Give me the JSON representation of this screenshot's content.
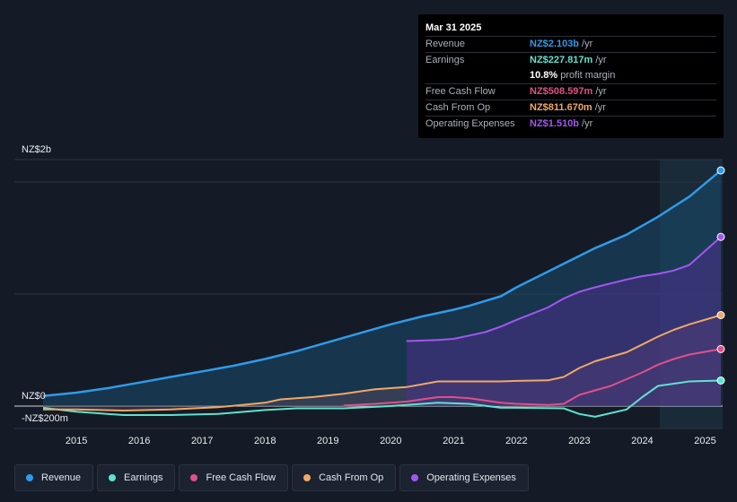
{
  "tooltip": {
    "date": "Mar 31 2025",
    "rows": [
      {
        "label": "Revenue",
        "value": "NZ$2.103b",
        "unit": "/yr",
        "color": "#2f9be8"
      },
      {
        "label": "Earnings",
        "value": "NZ$227.817m",
        "unit": "/yr",
        "color": "#5ee3cf"
      },
      {
        "label": "",
        "value": "10.8%",
        "unit": "profit margin",
        "color": "#ffffff"
      },
      {
        "label": "Free Cash Flow",
        "value": "NZ$508.597m",
        "unit": "/yr",
        "color": "#e0508a"
      },
      {
        "label": "Cash From Op",
        "value": "NZ$811.670m",
        "unit": "/yr",
        "color": "#f0a866"
      },
      {
        "label": "Operating Expenses",
        "value": "NZ$1.510b",
        "unit": "/yr",
        "color": "#a356f0"
      }
    ]
  },
  "legend": [
    {
      "label": "Revenue",
      "color": "#2f9be8"
    },
    {
      "label": "Earnings",
      "color": "#5ee3cf"
    },
    {
      "label": "Free Cash Flow",
      "color": "#e0508a"
    },
    {
      "label": "Cash From Op",
      "color": "#f0a866"
    },
    {
      "label": "Operating Expenses",
      "color": "#a356f0"
    }
  ],
  "chart_data": {
    "type": "line",
    "title": "",
    "ylabel_top": "NZ$2b",
    "ylabel_zero": "NZ$0",
    "ylabel_bottom": "-NZ$200m",
    "x_ticks": [
      "2015",
      "2016",
      "2017",
      "2018",
      "2019",
      "2020",
      "2021",
      "2022",
      "2023",
      "2024",
      "2025"
    ],
    "xlim": [
      2014.47,
      2025.25
    ],
    "ylim": [
      -200,
      2200
    ],
    "units": "NZ$ millions",
    "series": [
      {
        "name": "Revenue",
        "color": "#2f9be8",
        "x": [
          2014.47,
          2015.0,
          2015.5,
          2016.0,
          2016.5,
          2017.0,
          2017.5,
          2018.0,
          2018.5,
          2019.0,
          2019.5,
          2020.0,
          2020.5,
          2021.0,
          2021.25,
          2021.75,
          2022.0,
          2022.5,
          2023.0,
          2023.25,
          2023.75,
          2024.0,
          2024.25,
          2024.5,
          2024.75,
          2025.25
        ],
        "y": [
          90,
          120,
          160,
          210,
          260,
          310,
          360,
          420,
          490,
          570,
          650,
          730,
          800,
          860,
          895,
          980,
          1060,
          1200,
          1340,
          1410,
          1530,
          1610,
          1690,
          1780,
          1870,
          2103
        ]
      },
      {
        "name": "Earnings",
        "color": "#5ee3cf",
        "x": [
          2014.47,
          2015.0,
          2015.75,
          2016.5,
          2017.25,
          2018.0,
          2018.5,
          2019.25,
          2020.0,
          2020.75,
          2021.25,
          2021.75,
          2022.0,
          2022.75,
          2023.0,
          2023.25,
          2023.75,
          2024.0,
          2024.25,
          2024.75,
          2025.25
        ],
        "y": [
          -15,
          -50,
          -80,
          -80,
          -70,
          -35,
          -20,
          -20,
          0,
          30,
          20,
          -15,
          -15,
          -20,
          -70,
          -95,
          -30,
          80,
          180,
          220,
          228
        ]
      },
      {
        "name": "Free Cash Flow",
        "color": "#e0508a",
        "x": [
          2019.25,
          2019.75,
          2020.25,
          2020.75,
          2021.0,
          2021.25,
          2021.75,
          2022.0,
          2022.5,
          2022.75,
          2023.0,
          2023.5,
          2023.75,
          2024.0,
          2024.25,
          2024.5,
          2024.75,
          2025.25
        ],
        "y": [
          5,
          20,
          40,
          80,
          80,
          70,
          30,
          20,
          10,
          20,
          100,
          180,
          240,
          300,
          370,
          420,
          460,
          509
        ]
      },
      {
        "name": "Cash From Op",
        "color": "#f0a866",
        "x": [
          2014.47,
          2015.0,
          2015.75,
          2016.5,
          2017.25,
          2018.0,
          2018.25,
          2018.75,
          2019.25,
          2019.75,
          2020.25,
          2020.75,
          2021.0,
          2021.5,
          2021.75,
          2022.0,
          2022.5,
          2022.75,
          2023.0,
          2023.25,
          2023.75,
          2024.0,
          2024.25,
          2024.5,
          2024.75,
          2025.25
        ],
        "y": [
          -30,
          -30,
          -40,
          -30,
          -10,
          30,
          60,
          80,
          110,
          150,
          170,
          220,
          220,
          220,
          220,
          225,
          230,
          260,
          340,
          400,
          480,
          550,
          620,
          680,
          730,
          812
        ]
      },
      {
        "name": "Operating Expenses",
        "color": "#a356f0",
        "x": [
          2020.25,
          2020.75,
          2021.0,
          2021.25,
          2021.5,
          2021.75,
          2022.0,
          2022.5,
          2022.75,
          2023.0,
          2023.25,
          2023.75,
          2024.0,
          2024.25,
          2024.5,
          2024.75,
          2025.25
        ],
        "y": [
          580,
          590,
          600,
          630,
          660,
          710,
          770,
          880,
          960,
          1020,
          1060,
          1130,
          1160,
          1180,
          1210,
          1260,
          1510
        ]
      }
    ]
  }
}
